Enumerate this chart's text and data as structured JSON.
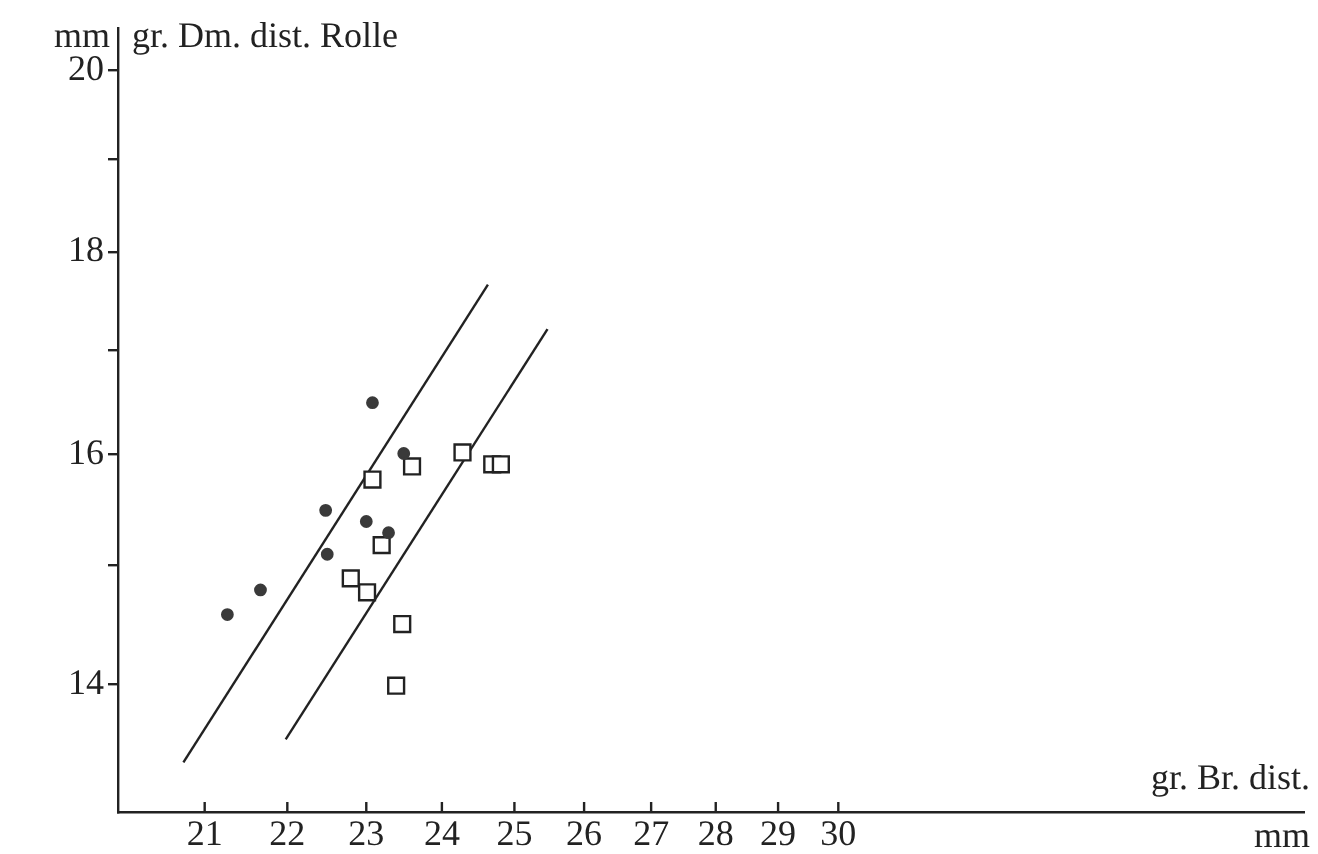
{
  "chart_data": {
    "type": "scatter",
    "xlabel": "gr. Br. dist.",
    "ylabel": "gr. Dm. dist. Rolle",
    "annotations": [
      "mm",
      "mm"
    ],
    "log": "xy",
    "xlim": [
      20,
      39
    ],
    "ylim": [
      13,
      20.5
    ],
    "xticks": [
      21,
      22,
      23,
      24,
      25,
      26,
      27,
      28,
      29,
      30
    ],
    "yticks": [
      14,
      {
        "value": 15,
        "label": null
      },
      16,
      {
        "value": 17,
        "label": null
      },
      18,
      {
        "value": 19,
        "label": null
      },
      20
    ],
    "series": [
      {
        "type": "scatter",
        "marker": "circle",
        "color": "#3a3a3a",
        "x": [
          23.08,
          23.49,
          22.48,
          23.0,
          23.29,
          22.5,
          21.67,
          21.27
        ],
        "values": [
          16.49,
          16.01,
          15.49,
          15.39,
          15.29,
          15.1,
          14.79,
          14.58
        ]
      },
      {
        "type": "scatter",
        "marker": "square",
        "color": "#222222",
        "x": [
          24.28,
          23.6,
          23.08,
          24.69,
          24.81,
          23.2,
          22.8,
          23.01,
          23.47,
          23.39
        ],
        "values": [
          16.02,
          15.89,
          15.77,
          15.91,
          15.91,
          15.18,
          14.89,
          14.77,
          14.5,
          13.99
        ]
      },
      {
        "type": "line",
        "marker": "none",
        "color": "#222222",
        "x": [
          20.75,
          24.63
        ],
        "values": [
          13.38,
          17.66
        ]
      },
      {
        "type": "line",
        "marker": "none",
        "color": "#222222",
        "x": [
          21.98,
          25.47
        ],
        "values": [
          13.56,
          17.21
        ]
      }
    ]
  }
}
